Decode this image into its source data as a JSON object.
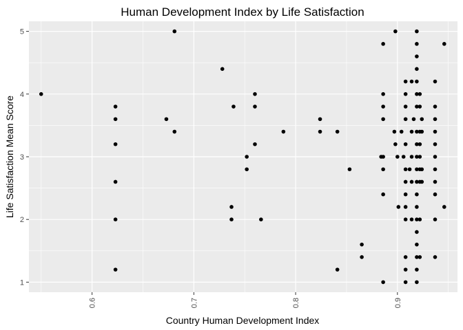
{
  "chart_data": {
    "type": "scatter",
    "title": "Human Development Index by Life Satisfaction",
    "xlabel": "Country Human Development Index",
    "ylabel": "Life Satisfaction Mean Score",
    "xlim": [
      0.538,
      0.959
    ],
    "ylim": [
      0.84,
      5.16
    ],
    "x_ticks": [
      0.6,
      0.7,
      0.8,
      0.9
    ],
    "x_tick_labels": [
      "0.6",
      "0.7",
      "0.8",
      "0.9"
    ],
    "x_tick_rotation": -90,
    "y_ticks": [
      1,
      2,
      3,
      4,
      5
    ],
    "y_tick_labels": [
      "1",
      "2",
      "3",
      "4",
      "5"
    ],
    "grid": true,
    "panel_color": "#ebebeb",
    "grid_color": "#ffffff",
    "point_color": "#000000",
    "points": [
      {
        "x": 0.55,
        "y": 4.0
      },
      {
        "x": 0.623,
        "y": 3.8
      },
      {
        "x": 0.623,
        "y": 3.6
      },
      {
        "x": 0.623,
        "y": 3.2
      },
      {
        "x": 0.623,
        "y": 2.6
      },
      {
        "x": 0.623,
        "y": 2.0
      },
      {
        "x": 0.623,
        "y": 1.2
      },
      {
        "x": 0.673,
        "y": 3.6
      },
      {
        "x": 0.681,
        "y": 5.0
      },
      {
        "x": 0.681,
        "y": 3.4
      },
      {
        "x": 0.728,
        "y": 4.4
      },
      {
        "x": 0.737,
        "y": 2.2
      },
      {
        "x": 0.737,
        "y": 2.0
      },
      {
        "x": 0.739,
        "y": 3.8
      },
      {
        "x": 0.752,
        "y": 3.0
      },
      {
        "x": 0.752,
        "y": 2.8
      },
      {
        "x": 0.76,
        "y": 4.0
      },
      {
        "x": 0.76,
        "y": 3.8
      },
      {
        "x": 0.76,
        "y": 3.2
      },
      {
        "x": 0.766,
        "y": 2.0
      },
      {
        "x": 0.788,
        "y": 3.4
      },
      {
        "x": 0.824,
        "y": 3.6
      },
      {
        "x": 0.824,
        "y": 3.4
      },
      {
        "x": 0.841,
        "y": 3.4
      },
      {
        "x": 0.841,
        "y": 1.2
      },
      {
        "x": 0.853,
        "y": 2.8
      },
      {
        "x": 0.865,
        "y": 1.6
      },
      {
        "x": 0.865,
        "y": 1.4
      },
      {
        "x": 0.884,
        "y": 3.0
      },
      {
        "x": 0.886,
        "y": 4.8
      },
      {
        "x": 0.886,
        "y": 4.0
      },
      {
        "x": 0.886,
        "y": 3.8
      },
      {
        "x": 0.886,
        "y": 3.6
      },
      {
        "x": 0.886,
        "y": 3.0
      },
      {
        "x": 0.886,
        "y": 2.8
      },
      {
        "x": 0.886,
        "y": 2.4
      },
      {
        "x": 0.886,
        "y": 1.0
      },
      {
        "x": 0.897,
        "y": 3.4
      },
      {
        "x": 0.898,
        "y": 5.0
      },
      {
        "x": 0.898,
        "y": 3.2
      },
      {
        "x": 0.9,
        "y": 3.0
      },
      {
        "x": 0.901,
        "y": 2.2
      },
      {
        "x": 0.904,
        "y": 3.4
      },
      {
        "x": 0.906,
        "y": 3.0
      },
      {
        "x": 0.908,
        "y": 4.2
      },
      {
        "x": 0.908,
        "y": 4.0
      },
      {
        "x": 0.908,
        "y": 3.8
      },
      {
        "x": 0.908,
        "y": 3.6
      },
      {
        "x": 0.908,
        "y": 3.2
      },
      {
        "x": 0.908,
        "y": 2.8
      },
      {
        "x": 0.908,
        "y": 2.6
      },
      {
        "x": 0.908,
        "y": 2.4
      },
      {
        "x": 0.908,
        "y": 2.2
      },
      {
        "x": 0.908,
        "y": 2.0
      },
      {
        "x": 0.908,
        "y": 1.4
      },
      {
        "x": 0.908,
        "y": 1.2
      },
      {
        "x": 0.908,
        "y": 1.0
      },
      {
        "x": 0.912,
        "y": 2.8
      },
      {
        "x": 0.914,
        "y": 4.2
      },
      {
        "x": 0.914,
        "y": 3.4
      },
      {
        "x": 0.914,
        "y": 3.0
      },
      {
        "x": 0.914,
        "y": 2.6
      },
      {
        "x": 0.914,
        "y": 2.0
      },
      {
        "x": 0.916,
        "y": 3.6
      },
      {
        "x": 0.919,
        "y": 5.0
      },
      {
        "x": 0.919,
        "y": 4.8
      },
      {
        "x": 0.919,
        "y": 4.6
      },
      {
        "x": 0.919,
        "y": 4.4
      },
      {
        "x": 0.919,
        "y": 4.2
      },
      {
        "x": 0.919,
        "y": 4.0
      },
      {
        "x": 0.919,
        "y": 3.8
      },
      {
        "x": 0.919,
        "y": 3.4
      },
      {
        "x": 0.919,
        "y": 3.2
      },
      {
        "x": 0.919,
        "y": 3.0
      },
      {
        "x": 0.919,
        "y": 2.8
      },
      {
        "x": 0.919,
        "y": 2.6
      },
      {
        "x": 0.919,
        "y": 2.4
      },
      {
        "x": 0.919,
        "y": 2.2
      },
      {
        "x": 0.919,
        "y": 2.0
      },
      {
        "x": 0.919,
        "y": 1.8
      },
      {
        "x": 0.919,
        "y": 1.6
      },
      {
        "x": 0.919,
        "y": 1.4
      },
      {
        "x": 0.919,
        "y": 1.2
      },
      {
        "x": 0.919,
        "y": 1.0
      },
      {
        "x": 0.922,
        "y": 4.0
      },
      {
        "x": 0.922,
        "y": 3.8
      },
      {
        "x": 0.922,
        "y": 3.4
      },
      {
        "x": 0.922,
        "y": 3.2
      },
      {
        "x": 0.922,
        "y": 3.0
      },
      {
        "x": 0.922,
        "y": 2.8
      },
      {
        "x": 0.922,
        "y": 2.6
      },
      {
        "x": 0.922,
        "y": 2.0
      },
      {
        "x": 0.922,
        "y": 1.4
      },
      {
        "x": 0.924,
        "y": 3.6
      },
      {
        "x": 0.924,
        "y": 3.4
      },
      {
        "x": 0.924,
        "y": 2.8
      },
      {
        "x": 0.924,
        "y": 2.6
      },
      {
        "x": 0.937,
        "y": 4.2
      },
      {
        "x": 0.937,
        "y": 3.8
      },
      {
        "x": 0.937,
        "y": 3.6
      },
      {
        "x": 0.937,
        "y": 3.4
      },
      {
        "x": 0.937,
        "y": 3.2
      },
      {
        "x": 0.937,
        "y": 3.0
      },
      {
        "x": 0.937,
        "y": 2.8
      },
      {
        "x": 0.937,
        "y": 2.6
      },
      {
        "x": 0.937,
        "y": 2.4
      },
      {
        "x": 0.937,
        "y": 2.0
      },
      {
        "x": 0.937,
        "y": 1.4
      },
      {
        "x": 0.946,
        "y": 4.8
      },
      {
        "x": 0.946,
        "y": 2.2
      }
    ]
  }
}
